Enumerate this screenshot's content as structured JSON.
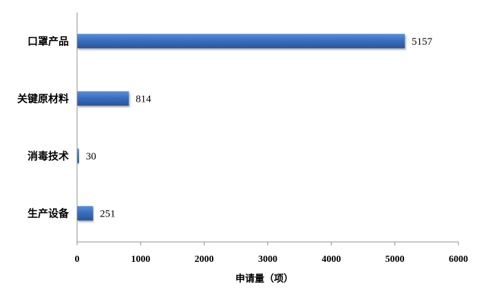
{
  "chart_data": {
    "type": "bar",
    "orientation": "horizontal",
    "categories": [
      "口罩产品",
      "关键原材料",
      "消毒技术",
      "生产设备"
    ],
    "values": [
      5157,
      814,
      30,
      251
    ],
    "xlabel": "申请量（项）",
    "ylabel": "",
    "xlim": [
      0,
      6000
    ],
    "xticks": [
      "0",
      "1000",
      "2000",
      "3000",
      "4000",
      "5000",
      "6000"
    ],
    "grid": false,
    "legend": "none",
    "bar_color": "#3A6FC0"
  }
}
